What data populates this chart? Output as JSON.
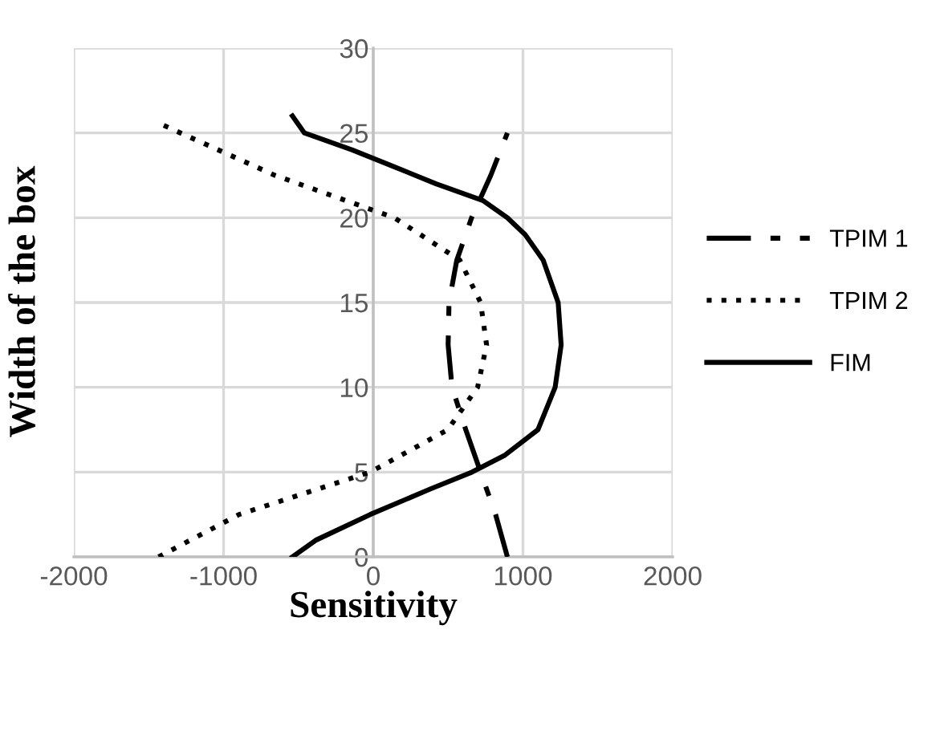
{
  "chart_data": {
    "type": "line",
    "xlabel": "Sensitivity",
    "ylabel": "Width of the box",
    "xlim": [
      -2000,
      2000
    ],
    "xticks": [
      -2000,
      -1000,
      0,
      1000,
      2000
    ],
    "ylim": [
      0,
      30
    ],
    "yticks": [
      0,
      5,
      10,
      15,
      20,
      25,
      30
    ],
    "grid": true,
    "legend": "right",
    "marker": "none",
    "series": [
      {
        "name": "TPIM 1",
        "color": "#000000",
        "line_style": "dashdot",
        "x": [
          896,
          817,
          717,
          618,
          526,
          500,
          506,
          558,
          657,
          785,
          896
        ],
        "values": [
          0,
          2.5,
          5,
          7.5,
          10,
          12.5,
          15,
          17.5,
          20,
          22.5,
          25
        ]
      },
      {
        "name": "TPIM 2",
        "color": "#000000",
        "line_style": "dotted",
        "x": [
          -1434,
          -896,
          -20,
          498,
          697,
          757,
          717,
          578,
          140,
          -657,
          -1414
        ],
        "values": [
          0,
          2.5,
          5,
          7.5,
          10,
          12.5,
          15,
          17.5,
          20,
          22.5,
          25.5
        ]
      },
      {
        "name": "FIM",
        "color": "#000000",
        "line_style": "solid",
        "x": [
          -540,
          -380,
          -20,
          380,
          660,
          880,
          1100,
          1215,
          1255,
          1235,
          1135,
          1015,
          895,
          735,
          420,
          140,
          -140,
          -460,
          -540
        ],
        "values": [
          0,
          1,
          2.5,
          4,
          5,
          6,
          7.5,
          10,
          12.5,
          15,
          17.5,
          19,
          20,
          21,
          22,
          23,
          24,
          25,
          26
        ]
      }
    ]
  }
}
